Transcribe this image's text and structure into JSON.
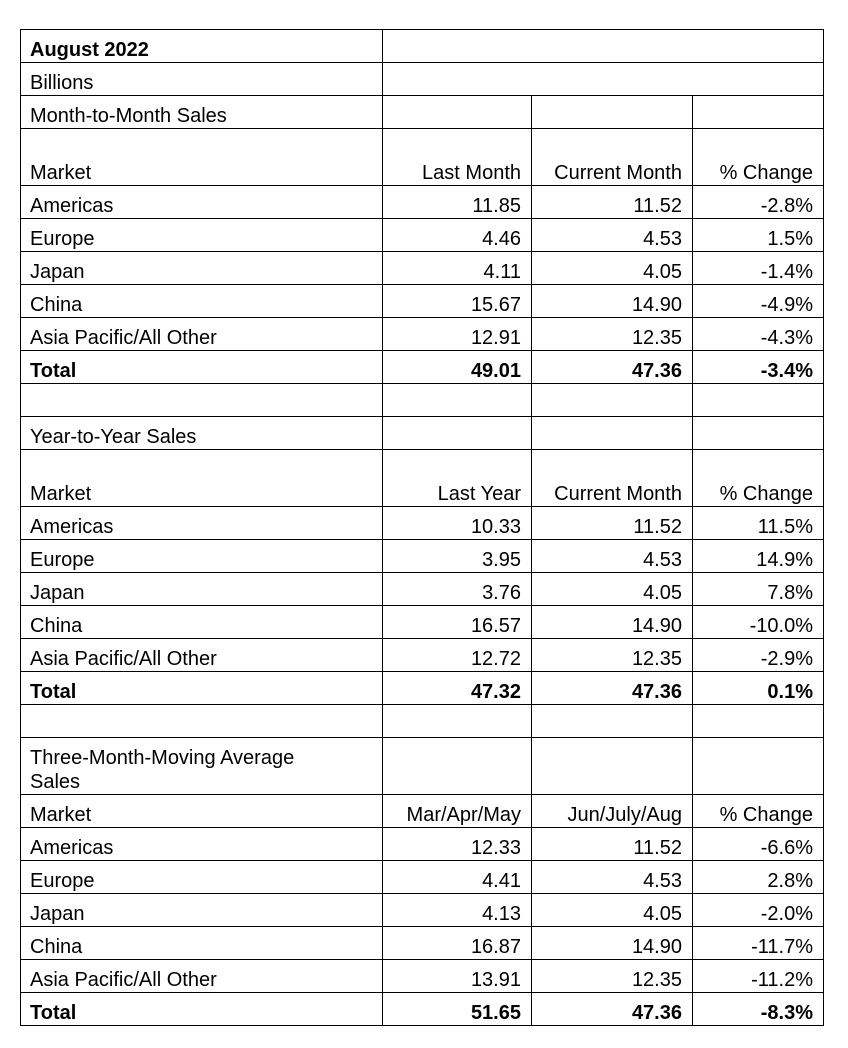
{
  "header": {
    "title": "August 2022",
    "units": "Billions"
  },
  "sections": [
    {
      "title": "Month-to-Month Sales",
      "columns": [
        "Market",
        "Last Month",
        "Current Month",
        "% Change"
      ],
      "rows": [
        [
          "Americas",
          "11.85",
          "11.52",
          "-2.8%"
        ],
        [
          "Europe",
          "4.46",
          "4.53",
          "1.5%"
        ],
        [
          "Japan",
          "4.11",
          "4.05",
          "-1.4%"
        ],
        [
          "China",
          "15.67",
          "14.90",
          "-4.9%"
        ],
        [
          "Asia Pacific/All Other",
          "12.91",
          "12.35",
          "-4.3%"
        ]
      ],
      "total": [
        "Total",
        "49.01",
        "47.36",
        "-3.4%"
      ]
    },
    {
      "title": "Year-to-Year Sales",
      "columns": [
        "Market",
        "Last Year",
        "Current Month",
        "% Change"
      ],
      "rows": [
        [
          "Americas",
          "10.33",
          "11.52",
          "11.5%"
        ],
        [
          "Europe",
          "3.95",
          "4.53",
          "14.9%"
        ],
        [
          "Japan",
          "3.76",
          "4.05",
          "7.8%"
        ],
        [
          "China",
          "16.57",
          "14.90",
          "-10.0%"
        ],
        [
          "Asia Pacific/All Other",
          "12.72",
          "12.35",
          "-2.9%"
        ]
      ],
      "total": [
        "Total",
        "47.32",
        "47.36",
        "0.1%"
      ]
    },
    {
      "title": "Three-Month-Moving Average Sales",
      "columns": [
        "Market",
        "Mar/Apr/May",
        "Jun/July/Aug",
        "% Change"
      ],
      "rows": [
        [
          "Americas",
          "12.33",
          "11.52",
          "-6.6%"
        ],
        [
          "Europe",
          "4.41",
          "4.53",
          "2.8%"
        ],
        [
          "Japan",
          "4.13",
          "4.05",
          "-2.0%"
        ],
        [
          "China",
          "16.87",
          "14.90",
          "-11.7%"
        ],
        [
          "Asia Pacific/All Other",
          "13.91",
          "12.35",
          "-11.2%"
        ]
      ],
      "total": [
        "Total",
        "51.65",
        "47.36",
        "-8.3%"
      ]
    }
  ]
}
